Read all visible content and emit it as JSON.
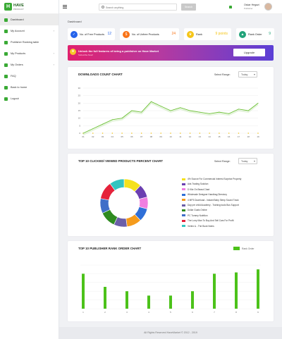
{
  "logo": {
    "name": "HAVE",
    "tagline": "PRODUCT"
  },
  "sidebar": {
    "items": [
      {
        "label": "Dashboard",
        "icon": "home-icon",
        "color": "#3aaa35",
        "chevron": false
      },
      {
        "label": "My Account",
        "icon": "user-icon",
        "color": "#3aaa35",
        "chevron": true
      },
      {
        "label": "Publisher Ranking table",
        "icon": "table-icon",
        "color": "#3aaa35",
        "chevron": false
      },
      {
        "label": "My Products",
        "icon": "box-icon",
        "color": "#3aaa35",
        "chevron": true
      },
      {
        "label": "My Orders",
        "icon": "cart-icon",
        "color": "#3aaa35",
        "chevron": true
      },
      {
        "label": "FAQ",
        "icon": "question-icon",
        "color": "#3aaa35",
        "chevron": false
      },
      {
        "label": "Back to home",
        "icon": "back-icon",
        "color": "#3aaa35",
        "chevron": false
      },
      {
        "label": "Logout",
        "icon": "logout-icon",
        "color": "#3aaa35",
        "chevron": false
      }
    ]
  },
  "topbar": {
    "search_placeholder": "Search anything",
    "search_button": "Search",
    "user_name": "Oskar Hegazi",
    "user_email": "Publisher"
  },
  "breadcrumb": "Dashboard",
  "stats": [
    {
      "label": "No. of Free Products",
      "value": "12",
      "icon": "check-icon",
      "icon_color": "#2563eb",
      "value_color": "#2563eb"
    },
    {
      "label": "No. of Unfree Products",
      "value": "24",
      "icon": "dollar-icon",
      "icon_color": "#f97316",
      "value_color": "#f97316"
    },
    {
      "label": "Rank",
      "value": "9 points",
      "icon": "trophy-icon",
      "icon_color": "#f5c518",
      "value_color": "#f5c518"
    },
    {
      "label": "Rank Order",
      "value": "9",
      "icon": "chart-icon",
      "icon_color": "#22a37a",
      "value_color": "#22a37a"
    }
  ],
  "banner": {
    "title": "Unlock the full features of being a publisher on Have Market",
    "subtitle": "Subscribe Now!",
    "button": "Upgrade"
  },
  "downloads": {
    "title": "DOWNLOADS COUNT CHART",
    "range_label": "Select Range:",
    "range_value": "Today"
  },
  "top10": {
    "title": "TOP 10 CLICKED/ VIEWED PRODUCTS PERCENT CHART",
    "range_label": "Select Range:",
    "range_value": "Today"
  },
  "rankchart": {
    "title": "TOP 10 PUBLISHER RANK ORDER CHART"
  },
  "footer": "All Rights Reserved HaveMarket © 2012 - 2019",
  "chart_data": [
    {
      "type": "line",
      "title": "DOWNLOADS COUNT CHART",
      "x": [
        "01",
        "02",
        "03",
        "04",
        "05",
        "06",
        "07",
        "08",
        "09",
        "10",
        "11",
        "12",
        "13",
        "14",
        "15",
        "16",
        "17",
        "18",
        "19"
      ],
      "ylim": [
        0,
        30
      ],
      "yticks": [
        0,
        5,
        10,
        15,
        20,
        25,
        30
      ],
      "series": [
        {
          "values": [
            0,
            3,
            6,
            9,
            10,
            15,
            14,
            21,
            18,
            15,
            17,
            15,
            14,
            13,
            14,
            13,
            16,
            15,
            20
          ]
        }
      ],
      "color": "#6cc035"
    },
    {
      "type": "pie",
      "title": "TOP 10 CLICKED/ VIEWED PRODUCTS PERCENT CHART",
      "labels": [
        "4% Source For Commercial Interest Surprise Property",
        "Ads Trading Solution",
        "D Kitz On Beast Chart",
        "Wholesale Designer Handbag Directory",
        "4 MP3 Download - Instant Baby Sleep Sound Track",
        "Day per child Academy - Training tools Bus Support",
        "Dollar Goals Online",
        "PC Tummy Nutrition",
        "The Lorry Man To Buy And Sell Cars For Profit",
        "Vertex & - The Book Notes"
      ],
      "values": [
        12,
        9,
        8,
        9,
        10,
        9,
        11,
        10,
        12,
        10
      ],
      "colors": [
        "#f5e11c",
        "#6b3fb0",
        "#f07ee0",
        "#2f6fd8",
        "#f59b1c",
        "#6b5ea8",
        "#2e8b20",
        "#3f6ec8",
        "#e5223b",
        "#34c4c0"
      ]
    },
    {
      "type": "bar",
      "title": "TOP 10 PUBLISHER RANK ORDER CHART",
      "categories": [
        "1",
        "2",
        "3",
        "4",
        "5",
        "6",
        "7",
        "8",
        "9"
      ],
      "series": [
        {
          "name": "Rank Order",
          "values": [
            8,
            5,
            4,
            3,
            3,
            4,
            8,
            8.3,
            9
          ]
        }
      ],
      "ylim": [
        0,
        10
      ],
      "color": "#4cc21a",
      "legend": "top-right"
    }
  ]
}
